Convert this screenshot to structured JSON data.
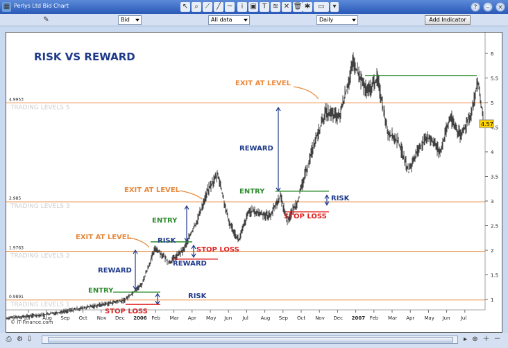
{
  "window": {
    "title": "Perlys Ltd Bid Chart"
  },
  "toolbar": {
    "icons": [
      "cursor-icon",
      "zoom-icon",
      "line-tool-icon",
      "trendline-icon",
      "horizontal-line-icon",
      "vertical-line-icon",
      "chart-settings-icon",
      "text-icon",
      "fibonacci-icon",
      "delete-icon",
      "trash-icon",
      "indicator-icon",
      "color-swatch-icon"
    ]
  },
  "controls": {
    "price_type": "Bid",
    "range": "All data",
    "interval": "Daily",
    "add_indicator": "Add Indicator"
  },
  "chart": {
    "heading": "RISK VS REWARD",
    "watermark": "© IT-Finance.com",
    "price_tag": "4.57",
    "level_lines": [
      {
        "label": "TRADING LEVELS 5",
        "value": "4.9953",
        "price": 4.9953,
        "color": "#e8883a"
      },
      {
        "label": "TRADING LEVELS 3",
        "value": "2.985",
        "price": 2.985,
        "color": "#e8883a"
      },
      {
        "label": "TRADING LEVELS 2",
        "value": "1.9763",
        "price": 1.9763,
        "color": "#e8883a"
      },
      {
        "label": "TRADING LEVELS 1",
        "value": "0.9891",
        "price": 0.9891,
        "color": "#e8883a"
      }
    ],
    "y_ticks": [
      "6",
      "5.5",
      "5",
      "4.5",
      "4",
      "3.5",
      "3",
      "2.5",
      "2",
      "1.5",
      "1"
    ],
    "x_ticks": [
      "Jul",
      "Aug",
      "Sep",
      "Oct",
      "Nov",
      "Dec",
      "2006",
      "Feb",
      "Mar",
      "Apr",
      "May",
      "Jun",
      "Jul",
      "Aug",
      "Sep",
      "Oct",
      "Nov",
      "Dec",
      "2007",
      "Feb",
      "Mar",
      "Apr",
      "May",
      "Jun",
      "Jul"
    ],
    "annotations": [
      {
        "text": "EXIT AT LEVEL",
        "color": "#e8883a"
      },
      {
        "text": "REWARD",
        "color": "#1f3a8a"
      },
      {
        "text": "EXIT AT LEVEL",
        "color": "#e8883a"
      },
      {
        "text": "ENTRY",
        "color": "#2e8b2e"
      },
      {
        "text": "RISK",
        "color": "#1f3a8a"
      },
      {
        "text": "STOP LOSS",
        "color": "#e02020"
      },
      {
        "text": "REWARD",
        "color": "#1f3a8a"
      },
      {
        "text": "EXIT AT LEVEL",
        "color": "#e8883a"
      },
      {
        "text": "ENTRY",
        "color": "#2e8b2e"
      },
      {
        "text": "RISK",
        "color": "#1f3a8a"
      },
      {
        "text": "STOP LOSS",
        "color": "#e02020"
      },
      {
        "text": "REWARD",
        "color": "#1f3a8a"
      },
      {
        "text": "ENTRY",
        "color": "#2e8b2e"
      },
      {
        "text": "STOP LOSS",
        "color": "#e02020"
      },
      {
        "text": "RISK",
        "color": "#1f3a8a"
      }
    ],
    "colors": {
      "price_line": "#111111",
      "level": "#e8883a",
      "entry": "#2e8b2e",
      "stop": "#e02020",
      "arrow": "#1f3a8a"
    }
  }
}
